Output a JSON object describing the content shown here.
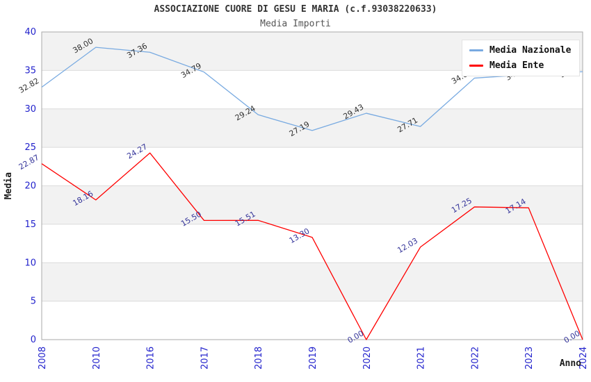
{
  "chart_data": {
    "type": "line",
    "title": "ASSOCIAZIONE CUORE DI GESU E MARIA (c.f.93038220633)",
    "subtitle": "Media Importi",
    "xlabel": "Anno",
    "ylabel": "Media",
    "ylim": [
      0,
      40
    ],
    "yticks": [
      0,
      5,
      10,
      15,
      20,
      25,
      30,
      35,
      40
    ],
    "grid": "horizontal gridlines every 5, alternating gray/white bands",
    "legend_position": "top-right-inside",
    "categories": [
      "2008",
      "2010",
      "2016",
      "2017",
      "2018",
      "2019",
      "2020",
      "2021",
      "2022",
      "2023",
      "2024"
    ],
    "series": [
      {
        "name": "Media Nazionale",
        "color": "#78AAE1",
        "label_color": "#303030",
        "values": [
          32.82,
          38.0,
          37.36,
          34.79,
          29.24,
          27.19,
          29.43,
          27.71,
          34.0,
          34.46,
          34.83
        ],
        "occluded_label_indices": [
          8,
          9
        ]
      },
      {
        "name": "Media Ente",
        "color": "#FF0000",
        "label_color": "#333399",
        "values": [
          22.87,
          18.16,
          24.27,
          15.5,
          15.51,
          13.3,
          0.0,
          12.03,
          17.25,
          17.14,
          0.0
        ],
        "occluded_label_indices": []
      }
    ],
    "colors": {
      "axis_tick_label": "#2222CC",
      "band_gray": "#F2F2F2",
      "gridline": "#DBDBDB",
      "plot_border": "#AAAAAA",
      "title": "#333333",
      "subtitle": "#555555",
      "axis_title": "#1A1A1A"
    }
  }
}
